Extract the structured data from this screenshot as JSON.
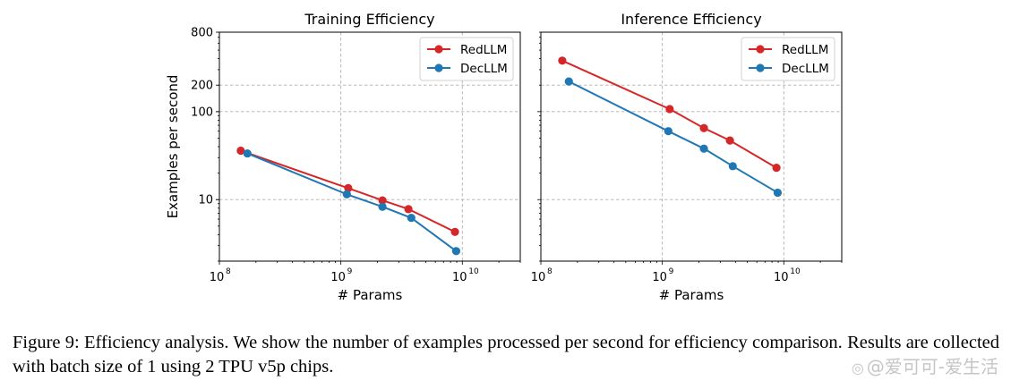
{
  "chart_data": [
    {
      "type": "line",
      "title": "Training Efficiency",
      "xlabel": "# Params",
      "ylabel": "Examples per second",
      "xscale": "log",
      "yscale": "log",
      "xlim": [
        100000000,
        30000000000
      ],
      "ylim": [
        2,
        800
      ],
      "xticks": [
        {
          "base": "10",
          "exp": "8"
        },
        {
          "base": "10",
          "exp": "9"
        },
        {
          "base": "10",
          "exp": "10"
        }
      ],
      "yticks": [
        "800",
        "200",
        "100",
        "10"
      ],
      "grid": true,
      "legend": "top-right",
      "series": [
        {
          "name": "RedLLM",
          "color": "#d62728",
          "x": [
            150000000,
            1150000000,
            2200000000,
            3600000000,
            8700000000
          ],
          "y": [
            36,
            13.5,
            9.8,
            7.8,
            4.3
          ]
        },
        {
          "name": "DecLLM",
          "color": "#1f77b4",
          "x": [
            170000000,
            1120000000,
            2200000000,
            3800000000,
            8900000000
          ],
          "y": [
            33.5,
            11.5,
            8.3,
            6.2,
            2.6
          ]
        }
      ]
    },
    {
      "type": "line",
      "title": "Inference Efficiency",
      "xlabel": "# Params",
      "ylabel": "",
      "xscale": "log",
      "yscale": "log",
      "xlim": [
        100000000,
        30000000000
      ],
      "ylim": [
        2,
        800
      ],
      "xticks": [
        {
          "base": "10",
          "exp": "8"
        },
        {
          "base": "10",
          "exp": "9"
        },
        {
          "base": "10",
          "exp": "10"
        }
      ],
      "yticks": [],
      "grid": true,
      "legend": "top-right",
      "series": [
        {
          "name": "RedLLM",
          "color": "#d62728",
          "x": [
            150000000,
            1150000000,
            2200000000,
            3600000000,
            8700000000
          ],
          "y": [
            380,
            107,
            65,
            47,
            23
          ]
        },
        {
          "name": "DecLLM",
          "color": "#1f77b4",
          "x": [
            170000000,
            1120000000,
            2200000000,
            3800000000,
            8900000000
          ],
          "y": [
            220,
            60,
            38,
            24,
            12
          ]
        }
      ]
    }
  ],
  "caption": "Figure 9:  Efficiency analysis. We show the number of examples processed per second for efficiency comparison. Results are collected with batch size of 1 using 2 TPU v5p chips.",
  "watermark": "@爱可可-爱生活"
}
